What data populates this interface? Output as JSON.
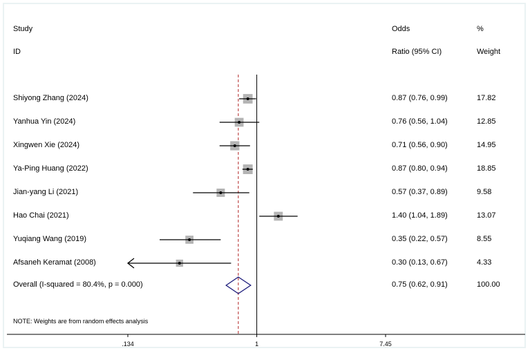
{
  "headers": {
    "study": "Study",
    "id": "ID",
    "or_top": "Odds",
    "or_bottom": "Ratio (95% CI)",
    "weight_top": "%",
    "weight_bottom": "Weight"
  },
  "note": "NOTE: Weights are from random effects analysis",
  "overall_label": "Overall  (I-squared = 80.4%, p = 0.000)",
  "colors": {
    "ci_line": "#000000",
    "box": "#b4b4b4",
    "diamond": "#1a1a7a",
    "overall_line": "#b22222",
    "frame": "#eaf2f3"
  },
  "chart_data": {
    "type": "forest",
    "x_scale": "log",
    "null_value": 1,
    "xlim": [
      0.134,
      7.45
    ],
    "ticks": [
      {
        "value": 0.134,
        "label": ".134"
      },
      {
        "value": 1,
        "label": "1"
      },
      {
        "value": 7.45,
        "label": "7.45"
      }
    ],
    "studies": [
      {
        "name": "Shiyong Zhang (2024)",
        "or": 0.87,
        "lo": 0.76,
        "hi": 0.99,
        "ci_text": "0.87 (0.76, 0.99)",
        "weight": 17.82,
        "weight_text": "17.82"
      },
      {
        "name": "Yanhua Yin (2024)",
        "or": 0.76,
        "lo": 0.56,
        "hi": 1.04,
        "ci_text": "0.76 (0.56, 1.04)",
        "weight": 12.85,
        "weight_text": "12.85"
      },
      {
        "name": "Xingwen Xie (2024)",
        "or": 0.71,
        "lo": 0.56,
        "hi": 0.9,
        "ci_text": "0.71 (0.56, 0.90)",
        "weight": 14.95,
        "weight_text": "14.95"
      },
      {
        "name": "Ya-Ping Huang (2022)",
        "or": 0.87,
        "lo": 0.8,
        "hi": 0.94,
        "ci_text": "0.87 (0.80, 0.94)",
        "weight": 18.85,
        "weight_text": "18.85"
      },
      {
        "name": "Jian-yang Li (2021)",
        "or": 0.57,
        "lo": 0.37,
        "hi": 0.89,
        "ci_text": "0.57 (0.37, 0.89)",
        "weight": 9.58,
        "weight_text": "9.58"
      },
      {
        "name": "Hao Chai (2021)",
        "or": 1.4,
        "lo": 1.04,
        "hi": 1.89,
        "ci_text": "1.40 (1.04, 1.89)",
        "weight": 13.07,
        "weight_text": "13.07"
      },
      {
        "name": "Yuqiang Wang (2019)",
        "or": 0.35,
        "lo": 0.22,
        "hi": 0.57,
        "ci_text": "0.35 (0.22, 0.57)",
        "weight": 8.55,
        "weight_text": "8.55"
      },
      {
        "name": "Afsaneh Keramat (2008)",
        "or": 0.3,
        "lo": 0.13,
        "hi": 0.67,
        "ci_text": "0.30 (0.13, 0.67)",
        "weight": 4.33,
        "weight_text": "4.33",
        "lo_truncated": true
      }
    ],
    "overall": {
      "or": 0.75,
      "lo": 0.62,
      "hi": 0.91,
      "ci_text": "0.75 (0.62, 0.91)",
      "weight_text": "100.00"
    }
  }
}
